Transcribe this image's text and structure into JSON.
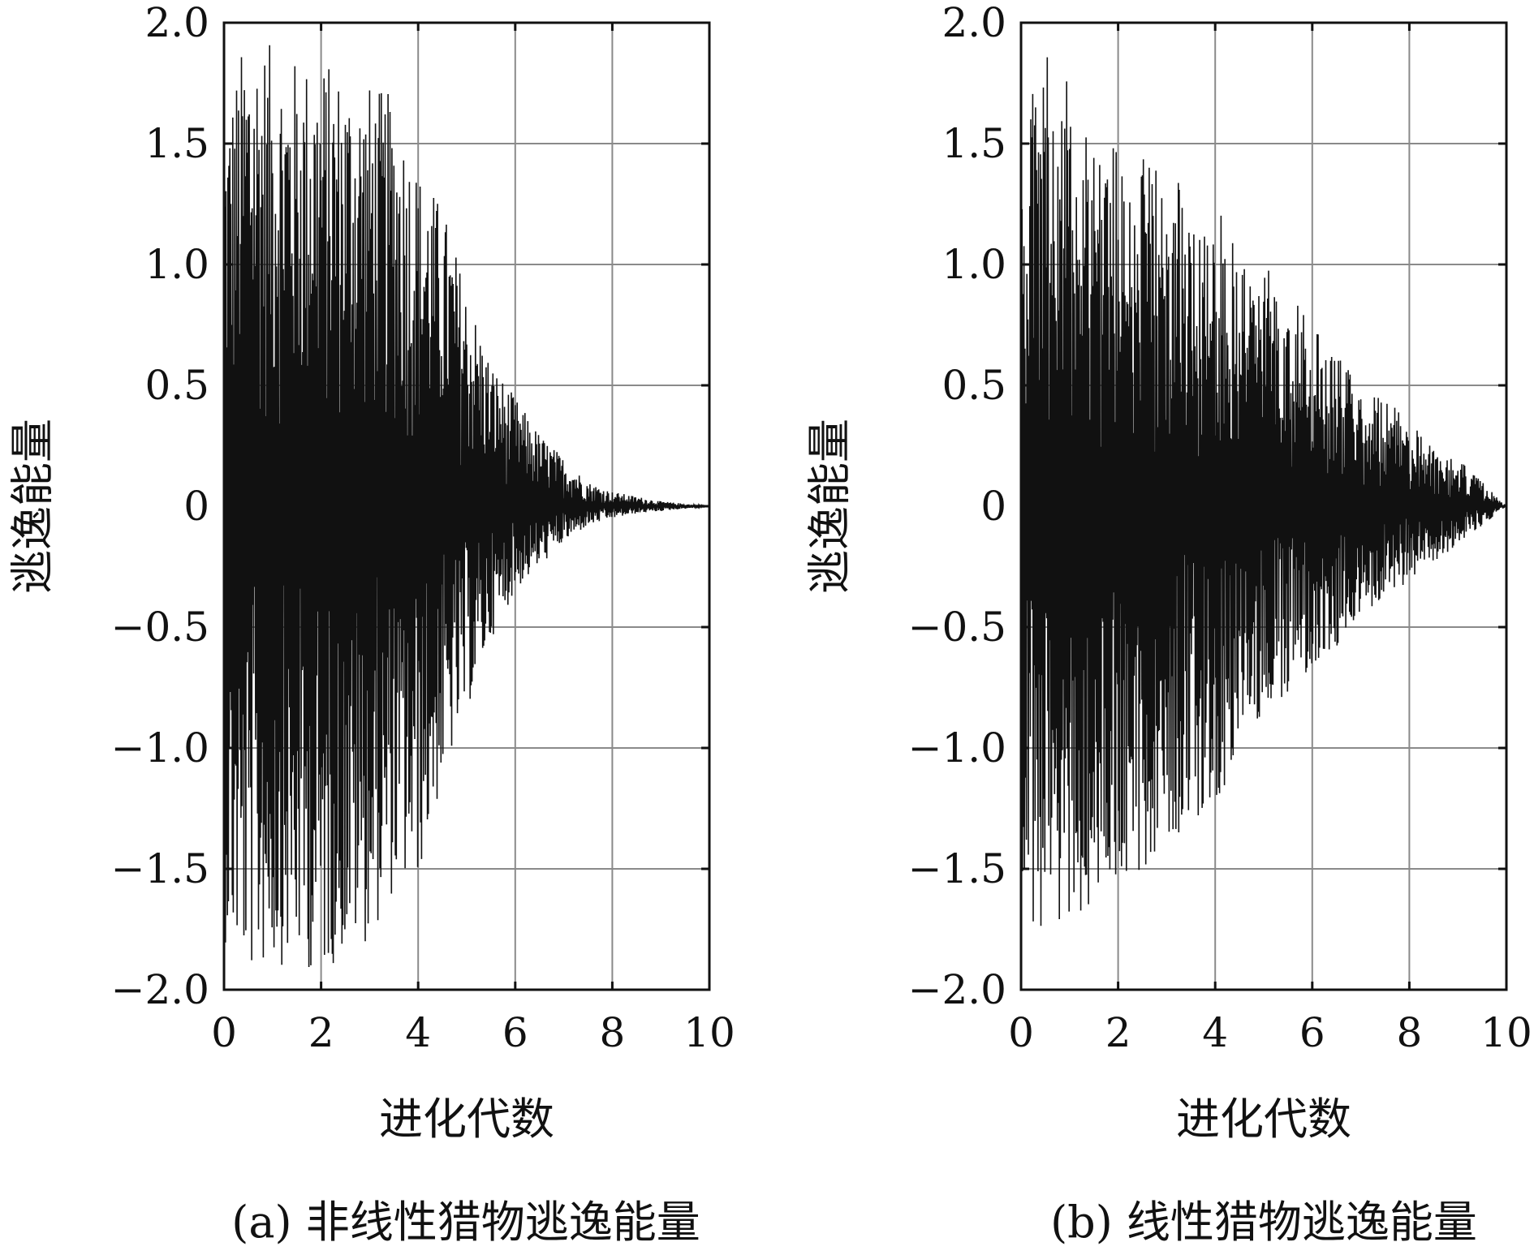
{
  "chart_data": [
    {
      "type": "line",
      "caption": "(a) 非线性猎物逃逸能量",
      "xlabel": "进化代数",
      "ylabel": "逃逸能量",
      "xlim": [
        0,
        10
      ],
      "ylim": [
        -2.0,
        2.0
      ],
      "x_ticks": [
        "0",
        "2",
        "4",
        "6",
        "8",
        "10"
      ],
      "y_ticks": [
        "2.0",
        "1.5",
        "1.0",
        "0.5",
        "0",
        "−0.5",
        "−1.0",
        "−1.5",
        "−2.0"
      ],
      "grid": true,
      "series": [
        {
          "envelope": {
            "x": [
              0,
              0.5,
              1,
              1.5,
              2,
              2.5,
              3,
              3.5,
              4,
              4.5,
              5,
              5.5,
              6,
              6.5,
              7,
              7.5,
              8,
              8.5,
              9,
              9.5,
              10
            ],
            "upper": [
              1.6,
              2.0,
              1.9,
              1.85,
              1.85,
              1.8,
              1.75,
              1.7,
              1.4,
              1.25,
              0.9,
              0.6,
              0.45,
              0.3,
              0.2,
              0.1,
              0.06,
              0.04,
              0.02,
              0.01,
              0.0
            ],
            "lower": [
              -1.8,
              -1.95,
              -1.9,
              -1.9,
              -1.95,
              -1.85,
              -1.8,
              -1.6,
              -1.55,
              -1.15,
              -0.85,
              -0.55,
              -0.35,
              -0.25,
              -0.15,
              -0.08,
              -0.05,
              -0.03,
              -0.02,
              -0.01,
              0.0
            ]
          }
        }
      ]
    },
    {
      "type": "line",
      "caption": "(b) 线性猎物逃逸能量",
      "xlabel": "进化代数",
      "ylabel": "逃逸能量",
      "xlim": [
        0,
        10
      ],
      "ylim": [
        -2.0,
        2.0
      ],
      "x_ticks": [
        "0",
        "2",
        "4",
        "6",
        "8",
        "10"
      ],
      "y_ticks": [
        "2.0",
        "1.5",
        "1.0",
        "0.5",
        "0",
        "−0.5",
        "−1.0",
        "−1.5",
        "−2.0"
      ],
      "grid": true,
      "series": [
        {
          "envelope": {
            "x": [
              0,
              0.5,
              1,
              1.5,
              2,
              2.5,
              3,
              3.5,
              4,
              4.5,
              5,
              5.5,
              6,
              6.5,
              7,
              7.5,
              8,
              8.5,
              9,
              9.5,
              10
            ],
            "upper": [
              1.55,
              1.9,
              1.75,
              1.6,
              1.5,
              1.45,
              1.4,
              1.3,
              1.25,
              1.1,
              1.0,
              0.9,
              0.75,
              0.65,
              0.5,
              0.45,
              0.35,
              0.25,
              0.2,
              0.1,
              0.0
            ],
            "lower": [
              -1.8,
              -1.8,
              -1.7,
              -1.65,
              -1.55,
              -1.5,
              -1.4,
              -1.3,
              -1.25,
              -1.0,
              -0.85,
              -0.8,
              -0.65,
              -0.6,
              -0.5,
              -0.4,
              -0.3,
              -0.25,
              -0.15,
              -0.08,
              0.0
            ]
          }
        }
      ]
    }
  ]
}
